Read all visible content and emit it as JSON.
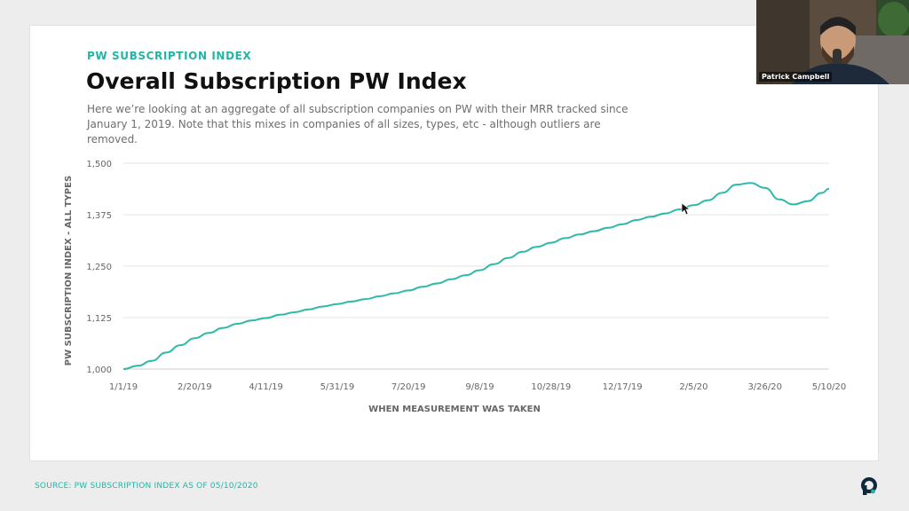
{
  "header": {
    "eyebrow": "PW SUBSCRIPTION INDEX",
    "title": "Overall Subscription PW Index",
    "description": "Here we’re looking at an aggregate of all subscription companies on PW with their MRR tracked since January 1, 2019. Note that this mixes in companies of all sizes, types, etc - although outliers are removed."
  },
  "footer": {
    "source": "SOURCE: PW SUBSCRIPTION INDEX AS OF 05/10/2020"
  },
  "webcam": {
    "name": "Patrick Campbell"
  },
  "colors": {
    "accent": "#23b5a4",
    "line": "#2fb9a8",
    "gridline": "#e6e6e6",
    "axis_text": "#666666"
  },
  "icons": {
    "brand_logo": "profitwell-logo-icon",
    "cursor": "mouse-cursor-icon"
  },
  "chart_data": {
    "type": "line",
    "title": "",
    "xlabel": "WHEN MEASUREMENT WAS TAKEN",
    "ylabel": "PW SUBSCRIPTION INDEX - ALL TYPES",
    "ylim": [
      1000,
      1500
    ],
    "y_ticks": [
      1000,
      1125,
      1250,
      1375,
      1500
    ],
    "y_tick_labels": [
      "1,000",
      "1,125",
      "1,250",
      "1,375",
      "1,500"
    ],
    "x_tick_labels": [
      "1/1/19",
      "2/20/19",
      "4/11/19",
      "5/31/19",
      "7/20/19",
      "9/8/19",
      "10/28/19",
      "12/17/19",
      "2/5/20",
      "3/26/20",
      "5/10/20"
    ],
    "x_tick_positions": [
      0,
      50,
      100,
      150,
      200,
      250,
      300,
      350,
      400,
      450,
      495
    ],
    "x_unit": "days since 1/1/19",
    "grid": true,
    "series": [
      {
        "name": "",
        "x": [
          0,
          10,
          20,
          30,
          40,
          50,
          60,
          70,
          80,
          90,
          100,
          110,
          120,
          130,
          140,
          150,
          160,
          170,
          180,
          190,
          200,
          210,
          220,
          230,
          240,
          250,
          260,
          270,
          280,
          290,
          300,
          310,
          320,
          330,
          340,
          350,
          360,
          370,
          380,
          390,
          400,
          410,
          420,
          430,
          440,
          450,
          460,
          470,
          480,
          490,
          495
        ],
        "values": [
          1000,
          1008,
          1020,
          1040,
          1058,
          1075,
          1088,
          1100,
          1110,
          1118,
          1124,
          1132,
          1138,
          1145,
          1152,
          1158,
          1164,
          1170,
          1177,
          1184,
          1191,
          1200,
          1208,
          1218,
          1228,
          1240,
          1255,
          1270,
          1285,
          1297,
          1307,
          1318,
          1327,
          1335,
          1343,
          1352,
          1362,
          1370,
          1378,
          1388,
          1398,
          1410,
          1428,
          1448,
          1452,
          1440,
          1412,
          1400,
          1408,
          1428,
          1438
        ]
      }
    ]
  }
}
